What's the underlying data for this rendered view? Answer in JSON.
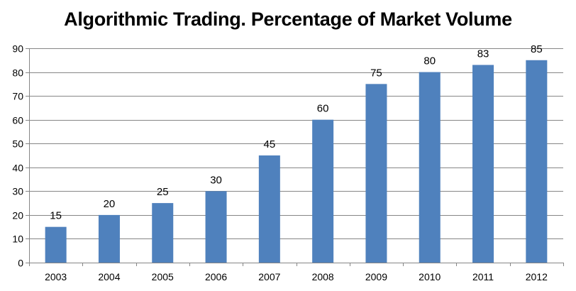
{
  "chart_data": {
    "type": "bar",
    "title": "Algorithmic Trading. Percentage of Market Volume",
    "xlabel": "",
    "ylabel": "",
    "categories": [
      "2003",
      "2004",
      "2005",
      "2006",
      "2007",
      "2008",
      "2009",
      "2010",
      "2011",
      "2012"
    ],
    "values": [
      15,
      20,
      25,
      30,
      45,
      60,
      75,
      80,
      83,
      85
    ],
    "ylim": [
      0,
      90
    ],
    "yticks": [
      0,
      10,
      20,
      30,
      40,
      50,
      60,
      70,
      80,
      90
    ],
    "grid": true,
    "legend": null,
    "data_labels": true,
    "bar_color": "#4F81BD"
  }
}
